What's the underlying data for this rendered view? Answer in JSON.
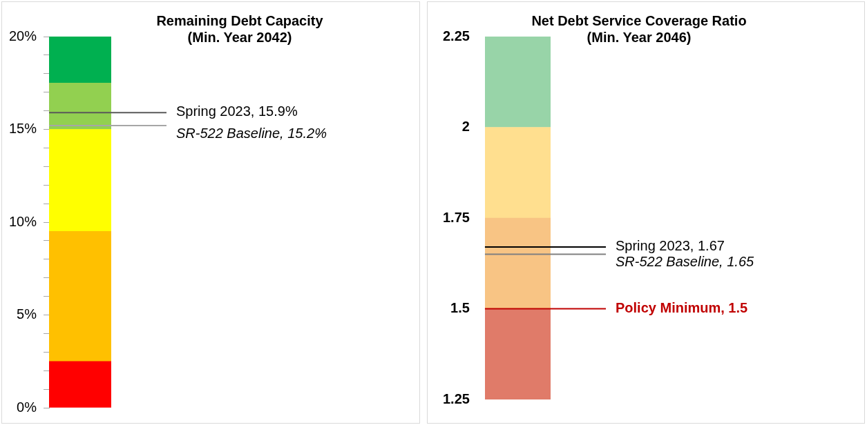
{
  "chart_data": [
    {
      "type": "bar",
      "title": "Remaining Debt Capacity\n(Min. Year 2042)",
      "categories": [
        null
      ],
      "series": [
        {
          "color": "#ff0000",
          "base": [
            0
          ],
          "values": [
            2.5
          ]
        },
        {
          "color": "#ffc000",
          "base": [
            2.5
          ],
          "values": [
            7
          ]
        },
        {
          "color": "#ffff00",
          "base": [
            9.5
          ],
          "values": [
            5.5
          ]
        },
        {
          "color": "#92d050",
          "base": [
            15
          ],
          "values": [
            2.5
          ]
        },
        {
          "color": "#00b050",
          "base": [
            17.5
          ],
          "values": [
            2.5
          ]
        }
      ],
      "ylim": [
        0,
        20
      ],
      "yticks": [
        {
          "value": 0,
          "label": "0%"
        },
        {
          "value": 1,
          "label": null
        },
        {
          "value": 2,
          "label": null
        },
        {
          "value": 3,
          "label": null
        },
        {
          "value": 4,
          "label": null
        },
        {
          "value": 5,
          "label": "5%"
        },
        {
          "value": 6,
          "label": null
        },
        {
          "value": 7,
          "label": null
        },
        {
          "value": 8,
          "label": null
        },
        {
          "value": 9,
          "label": null
        },
        {
          "value": 10,
          "label": "10%"
        },
        {
          "value": 11,
          "label": null
        },
        {
          "value": 12,
          "label": null
        },
        {
          "value": 13,
          "label": null
        },
        {
          "value": 14,
          "label": null
        },
        {
          "value": 15,
          "label": "15%"
        },
        {
          "value": 16,
          "label": null
        },
        {
          "value": 17,
          "label": null
        },
        {
          "value": 18,
          "label": null
        },
        {
          "value": 19,
          "label": null
        },
        {
          "value": 20,
          "label": "20%"
        }
      ],
      "ref_lines": [
        {
          "axis": "y",
          "value": 15.9,
          "label": "Spring 2023, 15.9%",
          "color": "#595959"
        },
        {
          "axis": "y",
          "value": 15.2,
          "label": "SR-522 Baseline, 15.2%",
          "color": "#a6a6a6"
        }
      ],
      "legend": false,
      "grid": false
    },
    {
      "type": "bar",
      "title": "Net Debt Service Coverage Ratio\n(Min. Year 2046)",
      "categories": [
        null
      ],
      "series": [
        {
          "color": "#e07b69",
          "base": [
            1.25
          ],
          "values": [
            0.25
          ]
        },
        {
          "color": "#f8c484",
          "base": [
            1.5
          ],
          "values": [
            0.25
          ]
        },
        {
          "color": "#ffdf8f",
          "base": [
            1.75
          ],
          "values": [
            0.25
          ]
        },
        {
          "color": "#98d4a8",
          "base": [
            2
          ],
          "values": [
            0.25
          ]
        }
      ],
      "ylim": [
        1.25,
        2.25
      ],
      "yticks": [
        1.25,
        1.5,
        1.75,
        2,
        2.25
      ],
      "ref_lines": [
        {
          "axis": "y",
          "value": 1.67,
          "label": "Spring 2023, 1.67",
          "color": "#000000"
        },
        {
          "axis": "y",
          "value": 1.65,
          "label": "SR-522 Baseline, 1.65",
          "color": "#808080"
        },
        {
          "axis": "y",
          "value": 1.5,
          "label": "Policy Minimum, 1.5",
          "color": "#c00000"
        }
      ],
      "legend": false,
      "grid": false
    }
  ]
}
